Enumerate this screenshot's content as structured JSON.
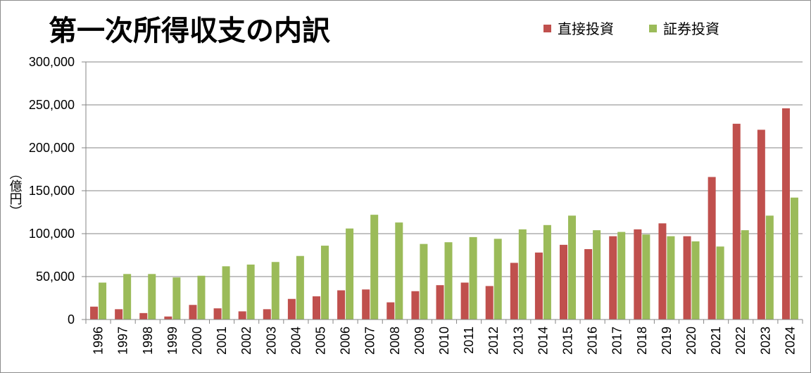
{
  "chart_data": {
    "type": "bar",
    "title": "第一次所得収支の内訳",
    "ylabel": "（億円）",
    "xlabel": "",
    "ylim": [
      0,
      300000
    ],
    "yticks": [
      0,
      50000,
      100000,
      150000,
      200000,
      250000,
      300000
    ],
    "ytick_labels": [
      "0",
      "50,000",
      "100,000",
      "150,000",
      "200,000",
      "250,000",
      "300,000"
    ],
    "grid": true,
    "legend_position": "top-right",
    "categories": [
      "1996",
      "1997",
      "1998",
      "1999",
      "2000",
      "2001",
      "2002",
      "2003",
      "2004",
      "2005",
      "2006",
      "2007",
      "2008",
      "2009",
      "2010",
      "2011",
      "2012",
      "2013",
      "2014",
      "2015",
      "2016",
      "2017",
      "2018",
      "2019",
      "2020",
      "2021",
      "2022",
      "2023",
      "2024"
    ],
    "series": [
      {
        "name": "直接投資",
        "color": "#c0504d",
        "values": [
          15000,
          12000,
          7500,
          3500,
          17000,
          13000,
          9500,
          12000,
          24000,
          27000,
          34000,
          35000,
          20000,
          33000,
          40000,
          43000,
          39000,
          66000,
          78000,
          87000,
          82000,
          97000,
          105000,
          112000,
          97000,
          166000,
          228000,
          221000,
          246000
        ]
      },
      {
        "name": "証券投資",
        "color": "#9bbb59",
        "values": [
          43000,
          53000,
          53000,
          49000,
          51000,
          62000,
          64000,
          67000,
          74000,
          86000,
          106000,
          122000,
          113000,
          88000,
          90000,
          96000,
          94000,
          105000,
          110000,
          121000,
          104000,
          102000,
          99000,
          97000,
          91000,
          85000,
          104000,
          121000,
          142000
        ]
      }
    ]
  }
}
